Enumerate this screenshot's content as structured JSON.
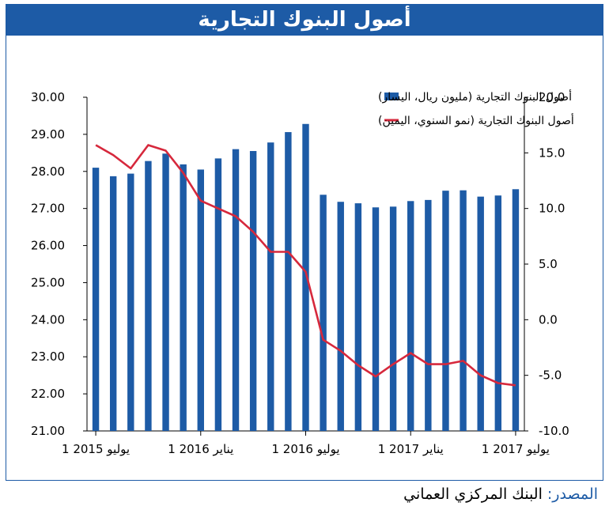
{
  "title": "أصول البنوك التجارية",
  "source": {
    "label": "المصدر:",
    "text": "البنك المركزي العماني"
  },
  "colors": {
    "bar": "#1d5ba6",
    "line": "#d6283c",
    "header": "#1d5ba6"
  },
  "chart_data": {
    "type": "bar",
    "legend": [
      "أصول البنوك التجارية (مليون ريال، اليسار)",
      "أصول البنوك التجارية (نمو السنوي، اليمين)"
    ],
    "legend_placement": "top-right",
    "series": [
      {
        "name": "أصول البنوك التجارية (مليون ريال، اليسار)",
        "type": "bar",
        "axis": "left",
        "values": [
          28.1,
          27.87,
          27.94,
          28.28,
          28.48,
          28.19,
          28.05,
          28.35,
          28.6,
          28.55,
          28.78,
          29.06,
          29.28,
          27.37,
          27.18,
          27.14,
          27.03,
          27.05,
          27.2,
          27.23,
          27.48,
          27.49,
          27.32,
          27.35,
          27.52
        ]
      },
      {
        "name": "أصول البنوك التجارية (نمو السنوي، اليمين)",
        "type": "line",
        "axis": "right",
        "values": [
          15.7,
          14.8,
          13.6,
          15.7,
          15.2,
          13.2,
          10.7,
          10.0,
          9.3,
          7.9,
          6.1,
          6.1,
          4.3,
          -1.8,
          -2.8,
          -4.1,
          -5.1,
          -4.0,
          -3.0,
          -4.0,
          -4.0,
          -3.7,
          -5.0,
          -5.7,
          -5.9
        ]
      }
    ],
    "y_left": {
      "min": 21,
      "max": 30,
      "ticks": [
        "30.00",
        "29.00",
        "28.00",
        "27.00",
        "26.00",
        "25.00",
        "24.00",
        "23.00",
        "22.00",
        "21.00"
      ]
    },
    "y_right": {
      "min": -10,
      "max": 20,
      "ticks": [
        "20.0",
        "15.0",
        "10.0",
        "5.0",
        "0.0",
        "-5.0",
        "-10.0"
      ]
    },
    "x_labels": [
      "1 يوليو 2015",
      "1 يناير 2016",
      "1 يوليو 2016",
      "1 يناير 2017",
      "1 يوليو 2017"
    ],
    "x_label_positions": [
      0,
      6,
      12,
      18,
      24
    ],
    "grid": false
  }
}
